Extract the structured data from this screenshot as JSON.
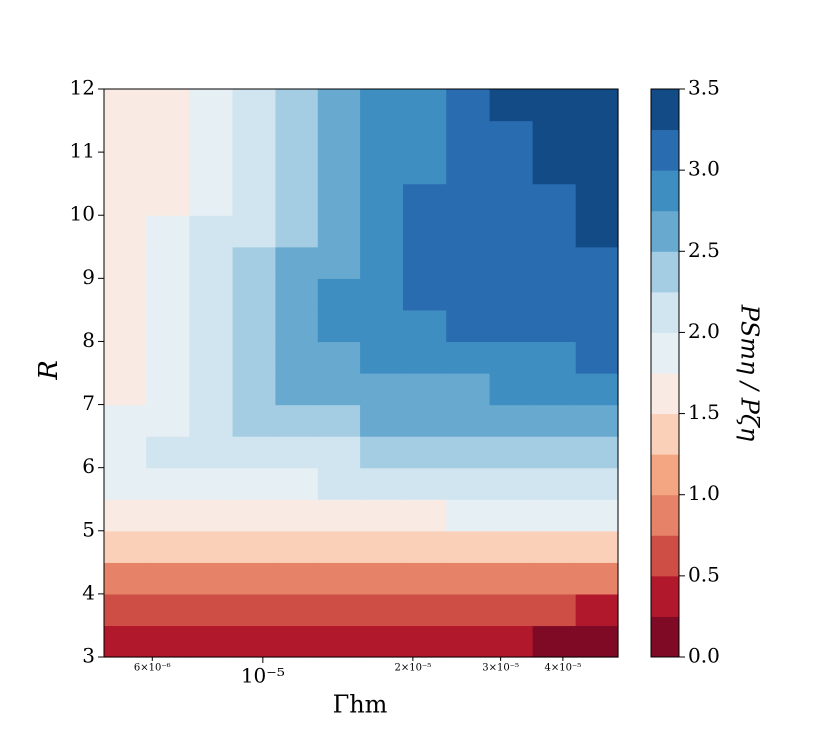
{
  "chart_data": {
    "type": "contourf",
    "x_label": "Γhm",
    "y_label": "R",
    "colorbar_label": "PSmη / Pζη",
    "xscale": "log",
    "xlim": [
      4.8e-06,
      5.16e-05
    ],
    "ylim": [
      3,
      12
    ],
    "xticks": [
      {
        "value": 1e-05,
        "label": "10⁻⁵"
      }
    ],
    "xticks_minor": [
      {
        "value": 6e-06,
        "label": "6×10⁻⁶"
      },
      {
        "value": 2e-05,
        "label": "2×10⁻⁵"
      },
      {
        "value": 3e-05,
        "label": "3×10⁻⁵"
      },
      {
        "value": 4e-05,
        "label": "4×10⁻⁵"
      }
    ],
    "yticks": [
      3,
      4,
      5,
      6,
      7,
      8,
      9,
      10,
      11,
      12
    ],
    "x": [
      5.28e-06,
      6.44e-06,
      7.87e-06,
      9.6e-06,
      1.17e-05,
      1.42e-05,
      1.73e-05,
      2.11e-05,
      2.58e-05,
      3.15e-05,
      3.84e-05,
      4.69e-05
    ],
    "y": [
      3.25,
      3.75,
      4.25,
      4.75,
      5.25,
      5.75,
      6.25,
      6.75,
      7.25,
      7.75,
      8.25,
      8.75,
      9.25,
      9.75,
      10.25,
      10.75,
      11.25,
      11.75
    ],
    "z": [
      [
        0.35,
        0.35,
        0.35,
        0.34,
        0.34,
        0.33,
        0.32,
        0.3,
        0.28,
        0.26,
        0.24,
        0.22
      ],
      [
        0.65,
        0.65,
        0.64,
        0.63,
        0.62,
        0.6,
        0.58,
        0.56,
        0.54,
        0.52,
        0.5,
        0.48
      ],
      [
        0.95,
        0.95,
        0.94,
        0.93,
        0.92,
        0.9,
        0.88,
        0.86,
        0.84,
        0.82,
        0.8,
        0.78
      ],
      [
        1.35,
        1.35,
        1.36,
        1.36,
        1.37,
        1.38,
        1.39,
        1.4,
        1.42,
        1.44,
        1.46,
        1.48
      ],
      [
        1.6,
        1.62,
        1.64,
        1.66,
        1.68,
        1.7,
        1.72,
        1.74,
        1.76,
        1.78,
        1.8,
        1.82
      ],
      [
        1.9,
        1.9,
        1.92,
        1.95,
        1.98,
        2.0,
        2.02,
        2.05,
        2.08,
        2.1,
        2.12,
        2.15
      ],
      [
        1.9,
        2.05,
        2.1,
        2.15,
        2.2,
        2.24,
        2.27,
        2.3,
        2.32,
        2.35,
        2.38,
        2.4
      ],
      [
        1.85,
        1.95,
        2.2,
        2.3,
        2.4,
        2.45,
        2.5,
        2.52,
        2.55,
        2.58,
        2.6,
        2.62
      ],
      [
        1.7,
        1.9,
        2.1,
        2.3,
        2.55,
        2.6,
        2.65,
        2.7,
        2.72,
        2.75,
        2.78,
        2.8
      ],
      [
        1.65,
        1.85,
        2.05,
        2.3,
        2.55,
        2.7,
        2.8,
        2.85,
        2.88,
        2.9,
        2.95,
        3.0
      ],
      [
        1.6,
        1.9,
        2.1,
        2.35,
        2.55,
        2.8,
        2.9,
        2.95,
        3.0,
        3.05,
        3.1,
        3.1
      ],
      [
        1.6,
        1.8,
        2.05,
        2.3,
        2.5,
        2.75,
        2.95,
        3.05,
        3.1,
        3.1,
        3.15,
        3.2
      ],
      [
        1.55,
        1.8,
        2.0,
        2.25,
        2.5,
        2.7,
        2.9,
        3.1,
        3.1,
        3.15,
        3.2,
        3.2
      ],
      [
        1.55,
        1.85,
        2.0,
        2.2,
        2.45,
        2.7,
        2.9,
        3.1,
        3.15,
        3.2,
        3.2,
        3.3
      ],
      [
        1.6,
        1.7,
        1.95,
        2.2,
        2.4,
        2.65,
        2.85,
        3.05,
        3.15,
        3.2,
        3.2,
        3.3
      ],
      [
        1.6,
        1.7,
        1.9,
        2.1,
        2.35,
        2.6,
        2.8,
        2.95,
        3.1,
        3.2,
        3.3,
        3.4
      ],
      [
        1.55,
        1.7,
        1.9,
        2.1,
        2.3,
        2.6,
        2.8,
        2.9,
        3.1,
        3.2,
        3.3,
        3.4
      ],
      [
        1.5,
        1.65,
        1.85,
        2.05,
        2.3,
        2.5,
        2.8,
        2.9,
        3.1,
        3.3,
        3.4,
        3.4
      ]
    ],
    "levels": [
      0,
      0.25,
      0.5,
      0.75,
      1,
      1.25,
      1.5,
      1.75,
      2,
      2.25,
      2.5,
      2.75,
      3,
      3.25,
      3.5
    ],
    "colors": [
      "#7e0a25",
      "#b2182b",
      "#ce4e46",
      "#e58267",
      "#f4a582",
      "#fbd0b9",
      "#f9ebe3",
      "#e6eff4",
      "#d1e5f0",
      "#a4cde3",
      "#67a9cf",
      "#3f8ec2",
      "#2a6cb0",
      "#134b86"
    ],
    "colorbar_ticks": [
      {
        "value": 0,
        "label": "0.0"
      },
      {
        "value": 0.5,
        "label": "0.5"
      },
      {
        "value": 1,
        "label": "1.0"
      },
      {
        "value": 1.5,
        "label": "1.5"
      },
      {
        "value": 2,
        "label": "2.0"
      },
      {
        "value": 2.5,
        "label": "2.5"
      },
      {
        "value": 3,
        "label": "3.0"
      },
      {
        "value": 3.5,
        "label": "3.5"
      }
    ]
  }
}
